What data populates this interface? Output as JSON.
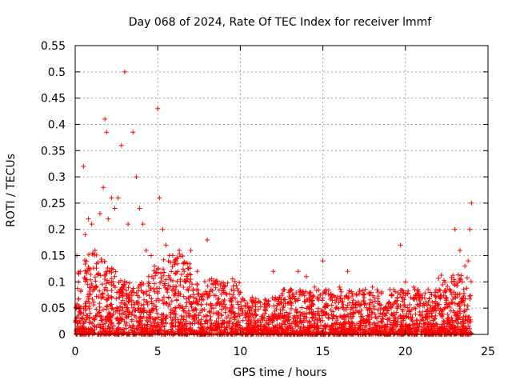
{
  "chart_data": {
    "type": "scatter",
    "title": "Day 068 of 2024, Rate Of TEC Index for receiver lmmf",
    "xlabel": "GPS time / hours",
    "ylabel": "ROTI / TECUs",
    "xlim": [
      0,
      25
    ],
    "ylim": [
      0,
      0.55
    ],
    "xticks": [
      0,
      5,
      10,
      15,
      20,
      25
    ],
    "xtick_labels": [
      "0",
      "5",
      "10",
      "15",
      "20",
      "25"
    ],
    "yticks": [
      0,
      0.05,
      0.1,
      0.15,
      0.2,
      0.25,
      0.3,
      0.35,
      0.4,
      0.45,
      0.5,
      0.55
    ],
    "ytick_labels": [
      "0",
      "0.05",
      "0.1",
      "0.15",
      "0.2",
      "0.25",
      "0.3",
      "0.35",
      "0.4",
      "0.45",
      "0.5",
      "0.55"
    ],
    "grid": true,
    "marker": "+",
    "color": "#ff0000",
    "series": [
      {
        "name": "ROTI",
        "x": [
          0.1,
          0.3,
          0.5,
          0.6,
          0.8,
          1.0,
          1.2,
          1.5,
          1.7,
          1.8,
          1.9,
          2.0,
          2.2,
          2.4,
          2.6,
          2.8,
          3.0,
          3.2,
          3.5,
          3.7,
          3.9,
          4.1,
          4.3,
          4.6,
          4.8,
          5.0,
          5.1,
          5.3,
          5.5,
          5.7,
          6.0,
          6.3,
          6.6,
          7.0,
          7.4,
          8.0,
          8.5,
          9.0,
          9.5,
          10.0,
          10.5,
          11.0,
          11.5,
          12.0,
          12.5,
          13.0,
          13.5,
          14.0,
          14.5,
          15.0,
          15.5,
          16.0,
          16.5,
          17.0,
          17.5,
          18.0,
          18.5,
          19.0,
          19.5,
          19.7,
          20.0,
          20.5,
          21.0,
          21.5,
          22.0,
          22.5,
          22.8,
          23.0,
          23.3,
          23.6,
          23.8,
          23.9,
          24.0
        ],
        "y": [
          0.15,
          0.12,
          0.32,
          0.19,
          0.22,
          0.21,
          0.16,
          0.23,
          0.28,
          0.41,
          0.385,
          0.22,
          0.26,
          0.24,
          0.26,
          0.36,
          0.5,
          0.21,
          0.385,
          0.3,
          0.24,
          0.21,
          0.16,
          0.15,
          0.13,
          0.43,
          0.26,
          0.2,
          0.17,
          0.15,
          0.14,
          0.16,
          0.12,
          0.16,
          0.12,
          0.18,
          0.1,
          0.08,
          0.07,
          0.08,
          0.05,
          0.06,
          0.04,
          0.12,
          0.06,
          0.07,
          0.12,
          0.11,
          0.09,
          0.14,
          0.07,
          0.09,
          0.12,
          0.06,
          0.07,
          0.09,
          0.05,
          0.06,
          0.07,
          0.17,
          0.1,
          0.09,
          0.07,
          0.08,
          0.05,
          0.07,
          0.1,
          0.2,
          0.16,
          0.13,
          0.14,
          0.2,
          0.25
        ]
      }
    ],
    "dense_band": {
      "y_min": 0.0,
      "y_max": 0.06
    }
  }
}
